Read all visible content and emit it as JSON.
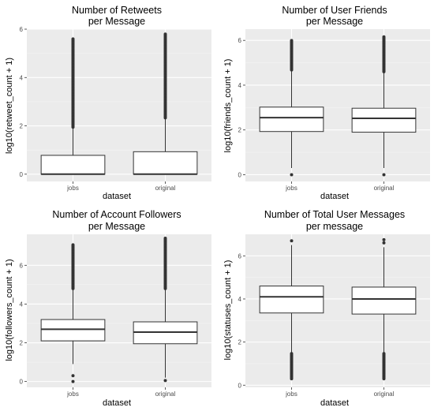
{
  "colors": {
    "panel_background": "#ebebeb",
    "grid_major": "#ffffff",
    "grid_minor": "#f4f4f4",
    "box_fill": "#ffffff",
    "box_line": "#333333",
    "outlier": "#333333",
    "tick_text": "#4d4d4d"
  },
  "chart_data": [
    {
      "type": "box",
      "title_lines": [
        "Number of Retweets",
        "per Message"
      ],
      "xlabel": "dataset",
      "ylabel": "log10(retweet_count + 1)",
      "categories": [
        "jobs",
        "original"
      ],
      "ylim": [
        -0.3,
        6
      ],
      "yticks": [
        0,
        2,
        4,
        6
      ],
      "boxes": [
        {
          "name": "jobs",
          "min": 0,
          "q1": 0,
          "median": 0,
          "q3": 0.78,
          "max": 1.95,
          "outliers_from": 1.95,
          "outliers_to": 5.6
        },
        {
          "name": "original",
          "min": 0,
          "q1": 0,
          "median": 0,
          "q3": 0.93,
          "max": 2.33,
          "outliers_from": 2.33,
          "outliers_to": 5.8
        }
      ]
    },
    {
      "type": "box",
      "title_lines": [
        "Number of User Friends",
        "per Message"
      ],
      "xlabel": "dataset",
      "ylabel": "log10(friends_count + 1)",
      "categories": [
        "jobs",
        "original"
      ],
      "ylim": [
        -0.3,
        6.5
      ],
      "yticks": [
        0,
        2,
        4,
        6
      ],
      "boxes": [
        {
          "name": "jobs",
          "min": 0.3,
          "q1": 1.93,
          "median": 2.55,
          "q3": 3.02,
          "max": 4.68,
          "outliers_from": 4.68,
          "outliers_to": 6.0,
          "low_outliers": [
            0.0
          ]
        },
        {
          "name": "original",
          "min": 0.3,
          "q1": 1.9,
          "median": 2.52,
          "q3": 2.97,
          "max": 4.6,
          "outliers_from": 4.6,
          "outliers_to": 6.2,
          "low_outliers": [
            0.0
          ]
        }
      ]
    },
    {
      "type": "box",
      "title_lines": [
        "Number of Account Followers",
        "per Message"
      ],
      "xlabel": "dataset",
      "ylabel": "log10(followers_count + 1)",
      "categories": [
        "jobs",
        "original"
      ],
      "ylim": [
        -0.3,
        7.6
      ],
      "yticks": [
        0,
        2,
        4,
        6
      ],
      "boxes": [
        {
          "name": "jobs",
          "min": 0.9,
          "q1": 2.1,
          "median": 2.7,
          "q3": 3.2,
          "max": 4.8,
          "outliers_from": 4.8,
          "outliers_to": 7.1,
          "low_outliers": [
            0.3,
            0.0
          ]
        },
        {
          "name": "original",
          "min": 0.2,
          "q1": 1.95,
          "median": 2.55,
          "q3": 3.08,
          "max": 4.8,
          "outliers_from": 4.8,
          "outliers_to": 7.4,
          "low_outliers": [
            0.05
          ]
        }
      ]
    },
    {
      "type": "box",
      "title_lines": [
        "Number of Total User Messages",
        "per message"
      ],
      "xlabel": "dataset",
      "ylabel": "log10(statuses_count + 1)",
      "categories": [
        "jobs",
        "original"
      ],
      "ylim": [
        -0.1,
        7
      ],
      "yticks": [
        0,
        2,
        4,
        6
      ],
      "boxes": [
        {
          "name": "jobs",
          "min": 1.5,
          "q1": 3.35,
          "median": 4.1,
          "q3": 4.6,
          "max": 6.5,
          "high_outliers": [
            6.7
          ],
          "low_outliers_from": 0.3,
          "low_outliers_to": 1.5
        },
        {
          "name": "original",
          "min": 1.5,
          "q1": 3.3,
          "median": 4.0,
          "q3": 4.55,
          "max": 6.4,
          "high_outliers": [
            6.6,
            6.75
          ],
          "low_outliers_from": 0.3,
          "low_outliers_to": 1.5
        }
      ]
    }
  ]
}
